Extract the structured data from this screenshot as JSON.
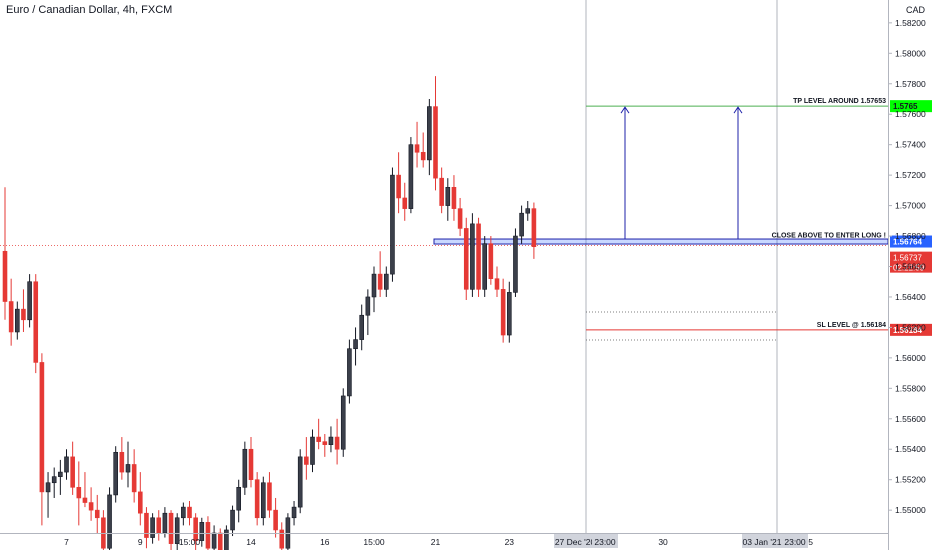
{
  "header": {
    "title": "Euro / Canadian Dollar, 4h, FXCM"
  },
  "currency": "CAD",
  "colors": {
    "up": "#131722",
    "down": "#e53935",
    "tp": "#4caf50",
    "tp_label": "#00ff00",
    "entry": "#1e22aa",
    "sl": "#e53935",
    "grid": "#e0e3eb",
    "axis_text": "#131722"
  },
  "chart_data": {
    "type": "candlestick",
    "title": "Euro / Canadian Dollar, 4h, FXCM",
    "ylim": [
      1.5485,
      1.5835
    ],
    "y_ticks": [
      "1.58200",
      "1.58000",
      "1.57800",
      "1.57600",
      "1.57400",
      "1.57200",
      "1.57000",
      "1.56800",
      "1.56600",
      "1.56400",
      "1.56200",
      "1.56000",
      "1.55800",
      "1.55600",
      "1.55400",
      "1.55200",
      "1.55000"
    ],
    "x_ticks": [
      "7",
      "9",
      "15:00",
      "14",
      "16",
      "15:00",
      "21",
      "23",
      "30",
      "5"
    ],
    "x_tick_slots": [
      10,
      22,
      30,
      40,
      52,
      60,
      70,
      82,
      107,
      131
    ],
    "time_markers": [
      "27 Dec '20",
      "23:00",
      "03 Jan '21",
      "23:00"
    ],
    "candles": [
      [
        1.567,
        1.5712,
        1.5625,
        1.5637
      ],
      [
        1.5637,
        1.5652,
        1.5608,
        1.5617
      ],
      [
        1.5617,
        1.5637,
        1.5612,
        1.5632
      ],
      [
        1.5632,
        1.5645,
        1.5617,
        1.5625
      ],
      [
        1.5625,
        1.5655,
        1.562,
        1.565
      ],
      [
        1.565,
        1.5655,
        1.559,
        1.5597
      ],
      [
        1.5597,
        1.5603,
        1.549,
        1.5512
      ],
      [
        1.5512,
        1.5525,
        1.5495,
        1.5518
      ],
      [
        1.5518,
        1.5528,
        1.5508,
        1.5522
      ],
      [
        1.5522,
        1.5533,
        1.551,
        1.5525
      ],
      [
        1.5525,
        1.554,
        1.552,
        1.5535
      ],
      [
        1.5535,
        1.5545,
        1.551,
        1.5515
      ],
      [
        1.5515,
        1.5532,
        1.549,
        1.5508
      ],
      [
        1.5508,
        1.5525,
        1.5502,
        1.5505
      ],
      [
        1.5505,
        1.5515,
        1.5493,
        1.55
      ],
      [
        1.55,
        1.551,
        1.5485,
        1.5495
      ],
      [
        1.5495,
        1.55,
        1.5465,
        1.5475
      ],
      [
        1.5475,
        1.5515,
        1.547,
        1.551
      ],
      [
        1.551,
        1.5542,
        1.5505,
        1.5538
      ],
      [
        1.5538,
        1.5548,
        1.552,
        1.5525
      ],
      [
        1.5525,
        1.5545,
        1.5515,
        1.553
      ],
      [
        1.553,
        1.554,
        1.5505,
        1.5512
      ],
      [
        1.5512,
        1.5525,
        1.549,
        1.5498
      ],
      [
        1.5498,
        1.5502,
        1.5475,
        1.5482
      ],
      [
        1.5482,
        1.5498,
        1.5478,
        1.5495
      ],
      [
        1.5495,
        1.55,
        1.548,
        1.5485
      ],
      [
        1.5485,
        1.5502,
        1.5482,
        1.5498
      ],
      [
        1.5498,
        1.55,
        1.547,
        1.5478
      ],
      [
        1.5478,
        1.5498,
        1.547,
        1.5495
      ],
      [
        1.5495,
        1.5505,
        1.549,
        1.5502
      ],
      [
        1.5502,
        1.5506,
        1.549,
        1.5495
      ],
      [
        1.5495,
        1.5498,
        1.547,
        1.548
      ],
      [
        1.548,
        1.5495,
        1.5476,
        1.5492
      ],
      [
        1.5492,
        1.5496,
        1.547,
        1.5475
      ],
      [
        1.5475,
        1.549,
        1.5468,
        1.5485
      ],
      [
        1.5485,
        1.5488,
        1.5465,
        1.547
      ],
      [
        1.547,
        1.549,
        1.5462,
        1.5487
      ],
      [
        1.5487,
        1.5503,
        1.5483,
        1.55
      ],
      [
        1.55,
        1.552,
        1.5492,
        1.5515
      ],
      [
        1.5515,
        1.5545,
        1.551,
        1.554
      ],
      [
        1.554,
        1.5548,
        1.5515,
        1.552
      ],
      [
        1.552,
        1.5525,
        1.549,
        1.5495
      ],
      [
        1.5495,
        1.5522,
        1.549,
        1.5518
      ],
      [
        1.5518,
        1.5525,
        1.5495,
        1.55
      ],
      [
        1.55,
        1.5508,
        1.5482,
        1.5487
      ],
      [
        1.5487,
        1.5492,
        1.547,
        1.5475
      ],
      [
        1.5475,
        1.5498,
        1.5472,
        1.5495
      ],
      [
        1.5495,
        1.5506,
        1.549,
        1.5502
      ],
      [
        1.5502,
        1.554,
        1.5498,
        1.5535
      ],
      [
        1.5535,
        1.5548,
        1.552,
        1.553
      ],
      [
        1.553,
        1.5553,
        1.5525,
        1.5548
      ],
      [
        1.5548,
        1.556,
        1.554,
        1.5545
      ],
      [
        1.5545,
        1.555,
        1.5535,
        1.5543
      ],
      [
        1.5543,
        1.5555,
        1.5538,
        1.5548
      ],
      [
        1.5548,
        1.556,
        1.553,
        1.554
      ],
      [
        1.554,
        1.558,
        1.5535,
        1.5575
      ],
      [
        1.5575,
        1.5612,
        1.557,
        1.5606
      ],
      [
        1.5606,
        1.562,
        1.5595,
        1.5612
      ],
      [
        1.5612,
        1.5635,
        1.5605,
        1.5628
      ],
      [
        1.5628,
        1.5645,
        1.5615,
        1.564
      ],
      [
        1.564,
        1.566,
        1.563,
        1.5655
      ],
      [
        1.5655,
        1.567,
        1.564,
        1.5645
      ],
      [
        1.5645,
        1.566,
        1.564,
        1.5655
      ],
      [
        1.5655,
        1.5725,
        1.565,
        1.572
      ],
      [
        1.572,
        1.5735,
        1.5695,
        1.5705
      ],
      [
        1.5705,
        1.5715,
        1.569,
        1.5698
      ],
      [
        1.5698,
        1.5745,
        1.5695,
        1.574
      ],
      [
        1.574,
        1.5755,
        1.5725,
        1.5735
      ],
      [
        1.5735,
        1.5748,
        1.5725,
        1.573
      ],
      [
        1.573,
        1.577,
        1.572,
        1.5765
      ],
      [
        1.5765,
        1.5785,
        1.571,
        1.5718
      ],
      [
        1.5718,
        1.5725,
        1.5695,
        1.57
      ],
      [
        1.57,
        1.5718,
        1.569,
        1.5712
      ],
      [
        1.5712,
        1.572,
        1.569,
        1.5698
      ],
      [
        1.5698,
        1.5705,
        1.568,
        1.5685
      ],
      [
        1.5685,
        1.5692,
        1.5638,
        1.5645
      ],
      [
        1.5645,
        1.5695,
        1.564,
        1.5688
      ],
      [
        1.5688,
        1.5692,
        1.564,
        1.5645
      ],
      [
        1.5645,
        1.568,
        1.564,
        1.5675
      ],
      [
        1.5675,
        1.568,
        1.5648,
        1.5652
      ],
      [
        1.5652,
        1.566,
        1.564,
        1.5645
      ],
      [
        1.5645,
        1.5652,
        1.561,
        1.5615
      ],
      [
        1.5615,
        1.565,
        1.561,
        1.5643
      ],
      [
        1.5643,
        1.5685,
        1.564,
        1.568
      ],
      [
        1.568,
        1.57,
        1.5675,
        1.5695
      ],
      [
        1.5695,
        1.5703,
        1.569,
        1.5698
      ],
      [
        1.5698,
        1.5702,
        1.5665,
        1.5673
      ]
    ],
    "annotations": {
      "tp": {
        "label": "TP LEVEL AROUND 1.57653",
        "value": 1.57653,
        "price_label": "1.5765"
      },
      "entry": {
        "label": "CLOSE ABOVE TO ENTER LONG !",
        "value": 1.56764,
        "price_label": "1.56764"
      },
      "current": {
        "value": 1.56737,
        "price_label": "1.56737",
        "countdown": "02:22:59"
      },
      "sl": {
        "label": "SL LEVEL @ 1.56184",
        "value": 1.56184,
        "price_label": "1.56184"
      }
    }
  }
}
